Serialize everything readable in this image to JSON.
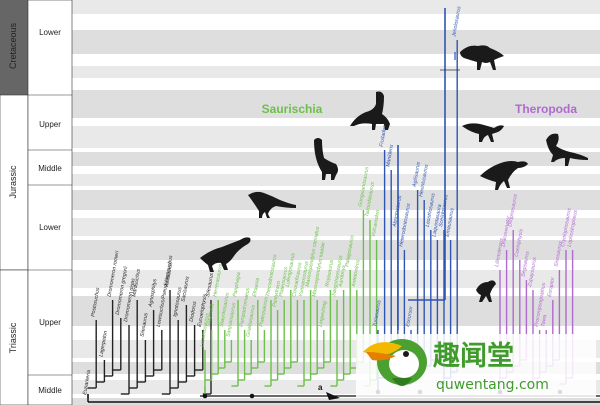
{
  "periods": [
    {
      "name": "Cretaceous"
    },
    {
      "name": "Jurassic"
    },
    {
      "name": "Triassic"
    }
  ],
  "epochs": [
    {
      "name": "Lower"
    },
    {
      "name": "Upper"
    },
    {
      "name": "Middle"
    },
    {
      "name": "Lower"
    },
    {
      "name": "Upper"
    },
    {
      "name": "Middle"
    }
  ],
  "clades": {
    "saurischia": {
      "label": "Saurischia",
      "color": "#6cc04a"
    },
    "theropoda": {
      "label": "Theropoda",
      "color": "#b06ad0"
    },
    "sauropod_blue": {
      "color": "#2e55b3"
    }
  },
  "node_marker": "a",
  "taxa": {
    "black": [
      "Euparkeria",
      "Postosuchus",
      "Lagerpeton",
      "Dromomeron romeri",
      "Dromomeron gregorii",
      "Dromomeron gigas",
      "Marasuchus",
      "Silesaurus",
      "Agnosphitys",
      "Lewisuchus/Pseudolagosuchus",
      "Asilisaurus",
      "Ignotosaurus",
      "Sacisaurus",
      "Diodorus",
      "Eucoelophysis",
      "Silesaurus"
    ],
    "green": [
      "Lesothosaurus",
      "Saturnalia",
      "Herrerasaurus",
      "Staurikosaurus",
      "Sanjuansaurus",
      "Panphagia",
      "Pampadromaeus",
      "Guaibasaurus",
      "Efraasia",
      "Plateosaurus",
      "Thecodontosaurus",
      "Pantydraco",
      "Plateosaurus",
      "Lufengosaurus",
      "Coloradisaurus",
      "Yunnanosaurus",
      "Massospondylus carinatus",
      "Massospondylus kaalae",
      "Lingwulong",
      "Riojasaurus",
      "Jiangshanosaurus",
      "Aardonyx",
      "Patagosaurus",
      "Antetonitrus",
      "Gongxianosaurus",
      "Tazoudasaurus",
      "Vulcanodon"
    ],
    "blue": [
      "Turiasaurus",
      "Fruitadens",
      "Manidens",
      "Abrictosaurus",
      "Heterodontosaurus",
      "Eocursor",
      "Agilisaurus",
      "Hexinlusaurus",
      "Lesothosaurus",
      "Laquintasaura",
      "Scelidosaurus",
      "Emausaurus",
      "Jeholosaurus"
    ],
    "purple": [
      "Liliensternus",
      "Dracovenator",
      "Dilophosaurus",
      "Coelophysis",
      "Segisaurus",
      "Zupaysaurus",
      "Procompsognathus",
      "Tawa",
      "Eoraptor",
      "Sinosaurus",
      "Cryolophosaurus",
      "Lophostropheus"
    ]
  },
  "watermark": {
    "chinese": "趣闻堂",
    "domain": "quwentang.com"
  }
}
